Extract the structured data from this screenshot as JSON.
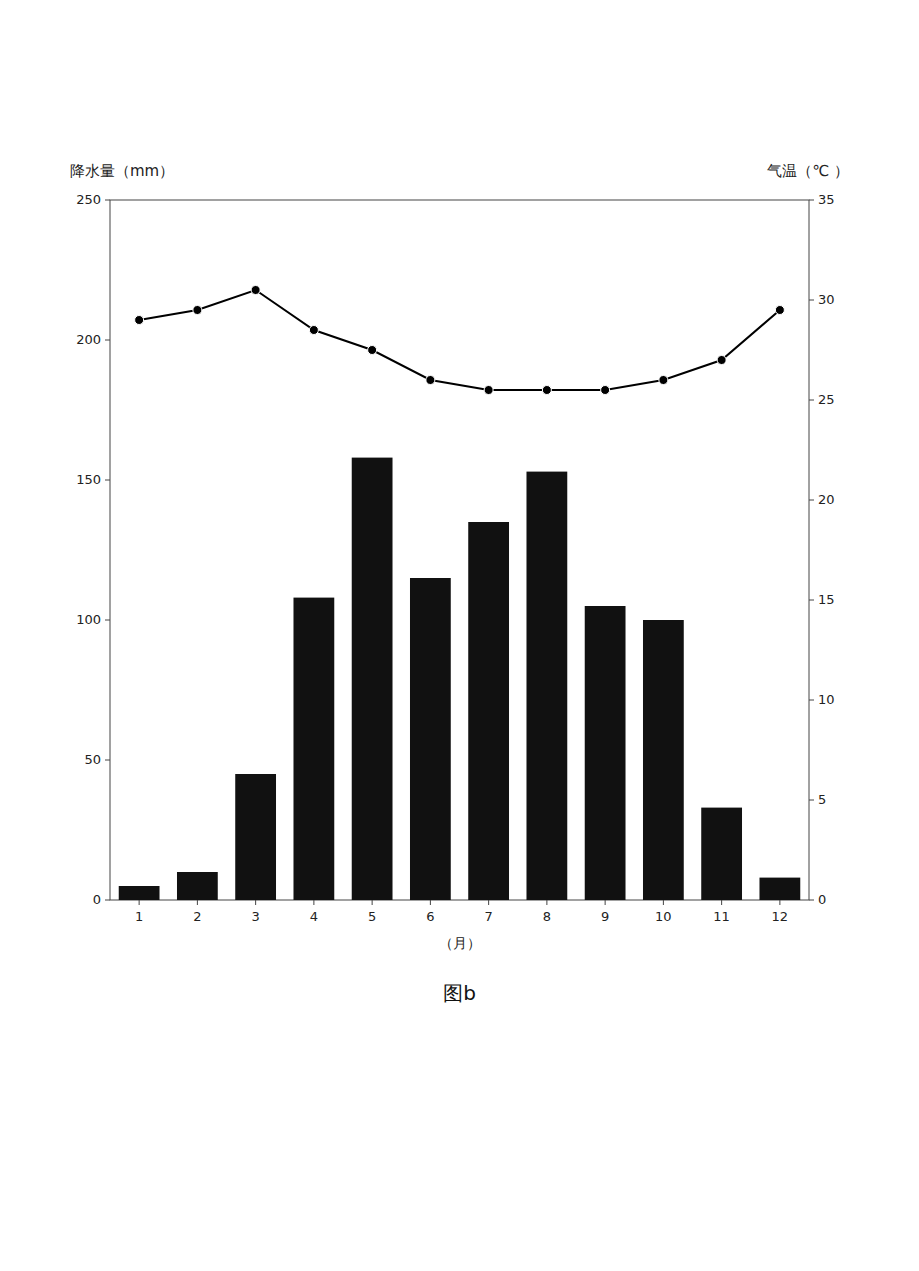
{
  "chart_data": {
    "type": "bar",
    "title": "图b",
    "x_label": "（月）",
    "y_label": "降水量（mm）",
    "y2_label": "气温（℃ ）",
    "x": [
      1,
      2,
      3,
      4,
      5,
      6,
      7,
      8,
      9,
      10,
      11,
      12
    ],
    "xlim": [
      0.5,
      12.5
    ],
    "xticks": [
      1,
      2,
      3,
      4,
      5,
      6,
      7,
      8,
      9,
      10,
      11,
      12
    ],
    "ylim": [
      0,
      250
    ],
    "yticks": [
      0,
      50,
      100,
      150,
      200,
      250
    ],
    "y2lim": [
      0,
      35
    ],
    "y2ticks": [
      0,
      5,
      10,
      15,
      20,
      25,
      30,
      35
    ],
    "grid": false,
    "series": [
      {
        "type": "bar",
        "color": "#111111",
        "values": [
          5,
          10,
          45,
          108,
          158,
          115,
          135,
          153,
          105,
          100,
          33,
          8
        ]
      },
      {
        "type": "line",
        "axis": "y2",
        "color": "#000000",
        "marker": "circle",
        "line_style": "solid",
        "values": [
          29,
          29.5,
          30.5,
          28.5,
          27.5,
          26,
          25.5,
          25.5,
          25.5,
          26,
          27,
          29.5
        ]
      }
    ]
  }
}
